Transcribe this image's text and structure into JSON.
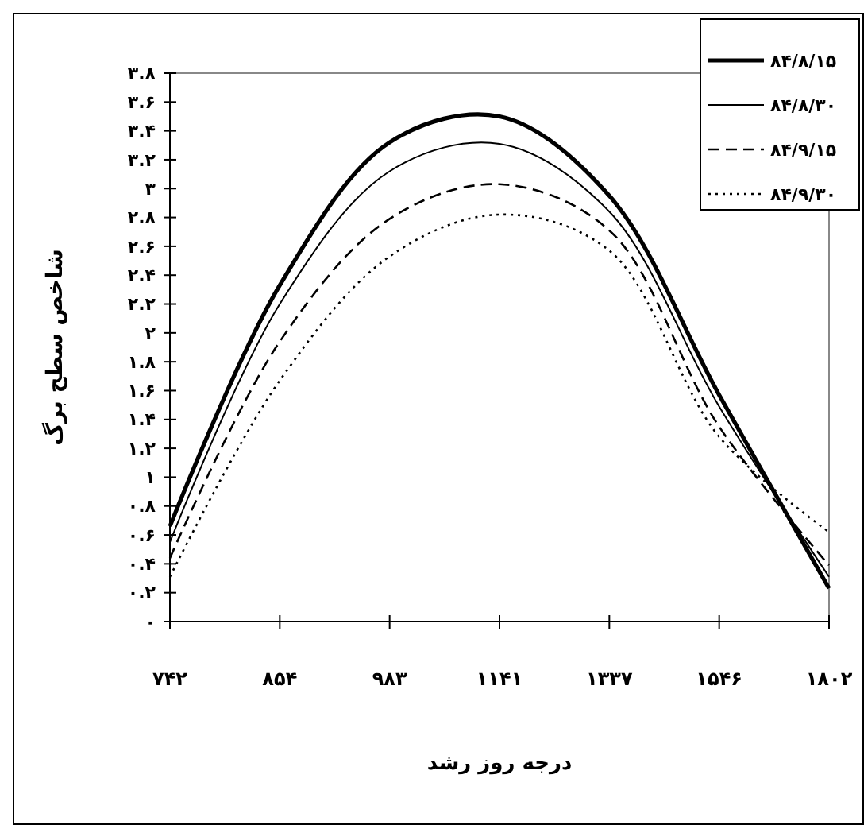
{
  "chart_data": {
    "type": "line",
    "xlabel": "درجه روز رشد",
    "ylabel": "شاخص سطح برگ",
    "categories": [
      "۷۴۲",
      "۸۵۴",
      "۹۸۳",
      "۱۱۴۱",
      "۱۳۳۷",
      "۱۵۴۶",
      "۱۸۰۲"
    ],
    "series": [
      {
        "name": "۸۴/۸/۱۵",
        "color": "#000000",
        "line_style": "solid",
        "values": [
          0.66,
          2.33,
          3.32,
          3.5,
          2.95,
          1.57,
          0.23
        ]
      },
      {
        "name": "۸۴/۸/۳۰",
        "color": "#000000",
        "line_style": "solid",
        "values": [
          0.55,
          2.2,
          3.12,
          3.31,
          2.84,
          1.49,
          0.31
        ]
      },
      {
        "name": "۸۴/۹/۱۵",
        "color": "#000000",
        "line_style": "dashed",
        "values": [
          0.44,
          1.94,
          2.79,
          3.03,
          2.71,
          1.35,
          0.39
        ]
      },
      {
        "name": "۸۴/۹/۳۰",
        "color": "#000000",
        "line_style": "dotted",
        "values": [
          0.31,
          1.67,
          2.53,
          2.82,
          2.57,
          1.28,
          0.62
        ]
      }
    ],
    "ylim": [
      0,
      3.8
    ],
    "yticks": [
      {
        "value": 0,
        "label": "۰"
      },
      {
        "value": 0.2,
        "label": "۰.۲"
      },
      {
        "value": 0.4,
        "label": "۰.۴"
      },
      {
        "value": 0.6,
        "label": "۰.۶"
      },
      {
        "value": 0.8,
        "label": "۰.۸"
      },
      {
        "value": 1,
        "label": "۱"
      },
      {
        "value": 1.2,
        "label": "۱.۲"
      },
      {
        "value": 1.4,
        "label": "۱.۴"
      },
      {
        "value": 1.6,
        "label": "۱.۶"
      },
      {
        "value": 1.8,
        "label": "۱.۸"
      },
      {
        "value": 2,
        "label": "۲"
      },
      {
        "value": 2.2,
        "label": "۲.۲"
      },
      {
        "value": 2.4,
        "label": "۲.۴"
      },
      {
        "value": 2.6,
        "label": "۲.۶"
      },
      {
        "value": 2.8,
        "label": "۲.۸"
      },
      {
        "value": 3,
        "label": "۳"
      },
      {
        "value": 3.2,
        "label": "۳.۲"
      },
      {
        "value": 3.4,
        "label": "۳.۴"
      },
      {
        "value": 3.6,
        "label": "۳.۶"
      },
      {
        "value": 3.8,
        "label": "۳.۸"
      }
    ],
    "grid": false,
    "legend": "top right",
    "marker": "none"
  }
}
